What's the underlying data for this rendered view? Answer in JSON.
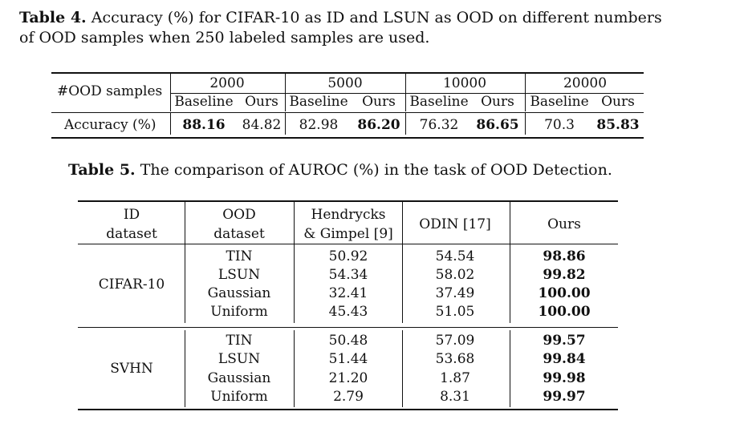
{
  "table4": {
    "caption_label": "Table 4.",
    "caption_line1": " Accuracy (%) for CIFAR-10 as ID and LSUN as OOD on different numbers",
    "caption_line2": "of OOD samples when 250 labeled samples are used.",
    "row_header": "#OOD samples",
    "groups": [
      "2000",
      "5000",
      "10000",
      "20000"
    ],
    "sub_baseline": "Baseline",
    "sub_ours": "Ours",
    "row_label": "Accuracy (%)",
    "values": [
      {
        "baseline": "88.16",
        "ours": "84.82",
        "best": "baseline"
      },
      {
        "baseline": "82.98",
        "ours": "86.20",
        "best": "ours"
      },
      {
        "baseline": "76.32",
        "ours": "86.65",
        "best": "ours"
      },
      {
        "baseline": "70.3",
        "ours": "85.83",
        "best": "ours"
      }
    ]
  },
  "table5": {
    "caption_label": "Table 5.",
    "caption_text": " The comparison of AUROC (%) in the task of OOD Detection.",
    "headers": {
      "id_line1": "ID",
      "id_line2": "dataset",
      "ood_line1": "OOD",
      "ood_line2": "dataset",
      "hg_line1": "Hendrycks",
      "hg_line2": "& Gimpel [9]",
      "odin": "ODIN [17]",
      "ours": "Ours"
    },
    "blocks": [
      {
        "id_dataset": "CIFAR-10",
        "rows": [
          {
            "ood": "TIN",
            "hg": "50.92",
            "odin": "54.54",
            "ours": "98.86"
          },
          {
            "ood": "LSUN",
            "hg": "54.34",
            "odin": "58.02",
            "ours": "99.82"
          },
          {
            "ood": "Gaussian",
            "hg": "32.41",
            "odin": "37.49",
            "ours": "100.00"
          },
          {
            "ood": "Uniform",
            "hg": "45.43",
            "odin": "51.05",
            "ours": "100.00"
          }
        ]
      },
      {
        "id_dataset": "SVHN",
        "rows": [
          {
            "ood": "TIN",
            "hg": "50.48",
            "odin": "57.09",
            "ours": "99.57"
          },
          {
            "ood": "LSUN",
            "hg": "51.44",
            "odin": "53.68",
            "ours": "99.84"
          },
          {
            "ood": "Gaussian",
            "hg": "21.20",
            "odin": "1.87",
            "ours": "99.98"
          },
          {
            "ood": "Uniform",
            "hg": "2.79",
            "odin": "8.31",
            "ours": "99.97"
          }
        ]
      }
    ]
  }
}
